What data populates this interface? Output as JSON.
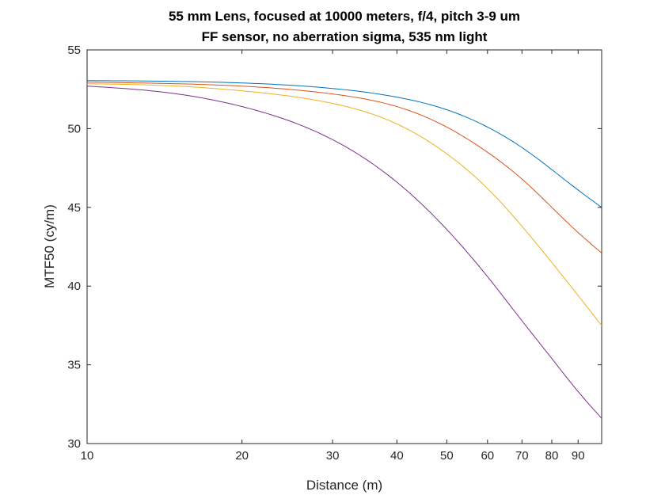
{
  "chart_data": {
    "type": "line",
    "title": [
      "55 mm Lens, focused at 10000 meters, f/4, pitch 3-9 um",
      "FF sensor, no aberration sigma, 535 nm light"
    ],
    "xlabel": "Distance (m)",
    "ylabel": "MTF50 (cy/m)",
    "xscale": "log",
    "xlim": [
      10,
      100
    ],
    "ylim": [
      30,
      55
    ],
    "xticks": [
      10,
      20,
      30,
      40,
      50,
      60,
      70,
      80,
      90
    ],
    "xtick_labels": [
      "10",
      "20",
      "30",
      "40",
      "50",
      "60",
      "70",
      "80",
      "90"
    ],
    "yticks": [
      30,
      35,
      40,
      45,
      50,
      55
    ],
    "ytick_labels": [
      "30",
      "35",
      "40",
      "45",
      "50",
      "55"
    ],
    "grid": false,
    "legend": "none",
    "x": [
      10,
      15,
      20,
      30,
      40,
      50,
      60,
      70,
      80,
      90,
      100
    ],
    "series": [
      {
        "color": "#0072BD",
        "values": [
          53.05,
          53.0,
          52.9,
          52.55,
          52.0,
          51.2,
          50.1,
          48.8,
          47.4,
          46.1,
          45.0
        ]
      },
      {
        "color": "#D95319",
        "values": [
          52.95,
          52.85,
          52.7,
          52.2,
          51.4,
          50.1,
          48.5,
          46.8,
          45.0,
          43.4,
          42.1
        ]
      },
      {
        "color": "#EDB120",
        "values": [
          52.85,
          52.7,
          52.4,
          51.6,
          50.3,
          48.4,
          46.2,
          43.8,
          41.5,
          39.4,
          37.5
        ]
      },
      {
        "color": "#7E2F8E",
        "values": [
          52.7,
          52.2,
          51.4,
          49.3,
          46.6,
          43.6,
          40.6,
          37.8,
          35.4,
          33.3,
          31.6
        ]
      }
    ]
  }
}
